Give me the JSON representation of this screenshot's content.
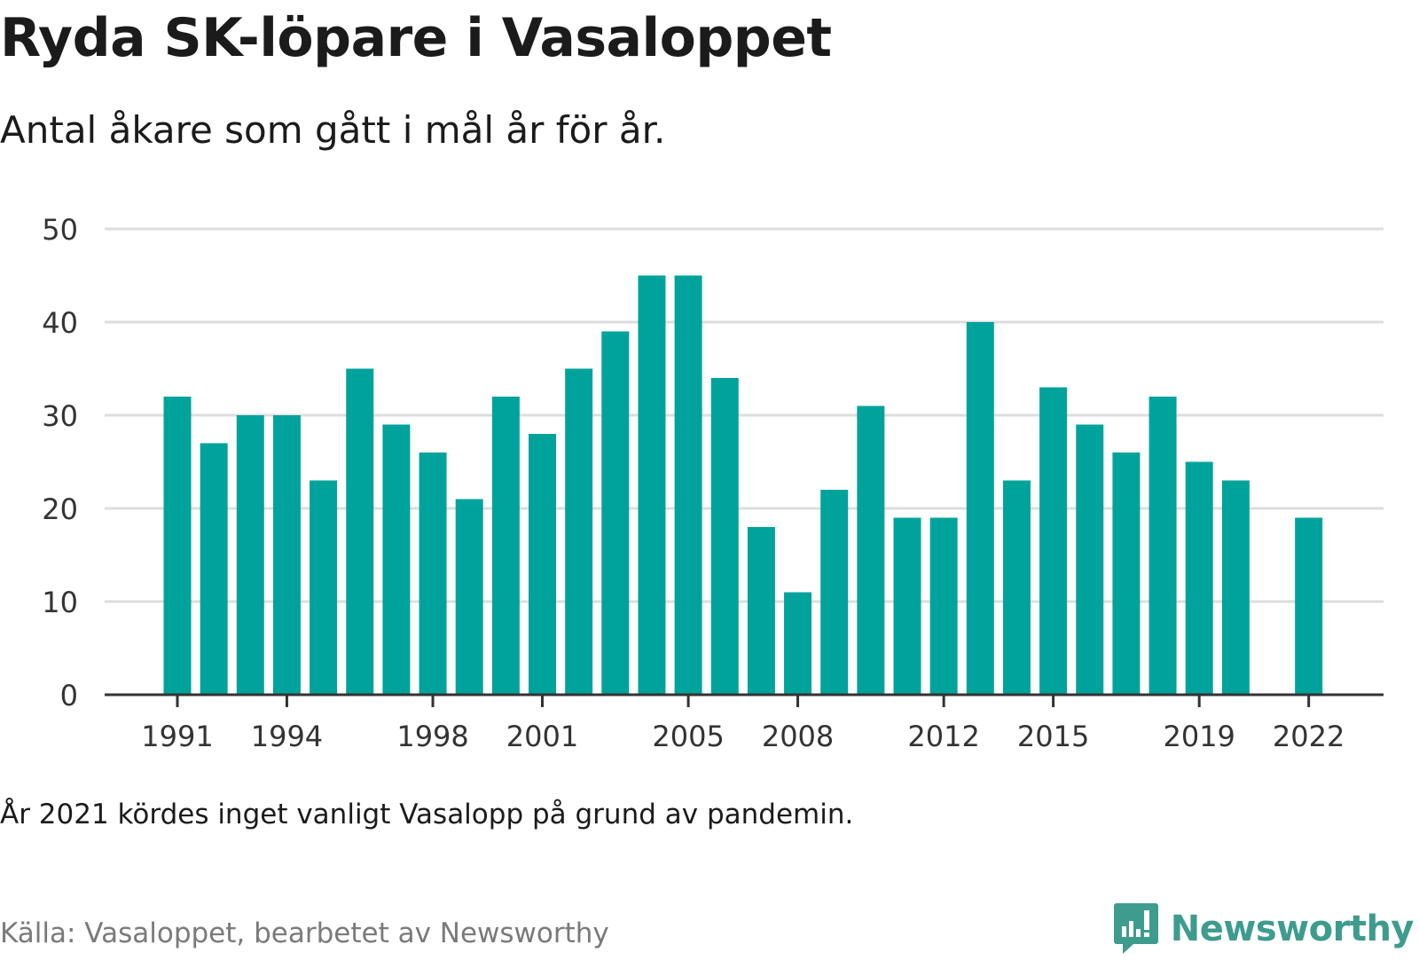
{
  "title": "Ryda SK-löpare i Vasaloppet",
  "subtitle": "Antal åkare som gått i mål år för år.",
  "note": "År 2021 kördes inget vanligt Vasalopp på grund av pandemin.",
  "source": "Källa: Vasaloppet, bearbetet av Newsworthy",
  "brand": {
    "name": "Newsworthy",
    "icon": "newsworthy-logo-icon",
    "color": "#3e9c8e"
  },
  "colors": {
    "bar": "#00a39b",
    "grid": "#dddddd",
    "axis": "#333333",
    "tick_text": "#333333"
  },
  "chart_data": {
    "type": "bar",
    "title": "Ryda SK-löpare i Vasaloppet",
    "subtitle": "Antal åkare som gått i mål år för år.",
    "x": [
      1991,
      1992,
      1993,
      1994,
      1995,
      1996,
      1997,
      1998,
      1999,
      2000,
      2001,
      2002,
      2003,
      2004,
      2005,
      2006,
      2007,
      2008,
      2009,
      2010,
      2011,
      2012,
      2013,
      2014,
      2015,
      2016,
      2017,
      2018,
      2019,
      2020,
      2021,
      2022
    ],
    "values": [
      32,
      27,
      30,
      30,
      23,
      35,
      29,
      26,
      21,
      32,
      28,
      35,
      39,
      45,
      45,
      34,
      18,
      11,
      22,
      31,
      19,
      19,
      40,
      23,
      33,
      29,
      26,
      32,
      25,
      23,
      null,
      19
    ],
    "x_tick_labels": [
      "1991",
      "1994",
      "1998",
      "2001",
      "2005",
      "2008",
      "2012",
      "2015",
      "2019",
      "2022"
    ],
    "y_ticks": [
      0,
      10,
      20,
      30,
      40,
      50
    ],
    "ylim": [
      0,
      50
    ],
    "xlabel": "",
    "ylabel": "",
    "grid": true,
    "legend": false
  }
}
